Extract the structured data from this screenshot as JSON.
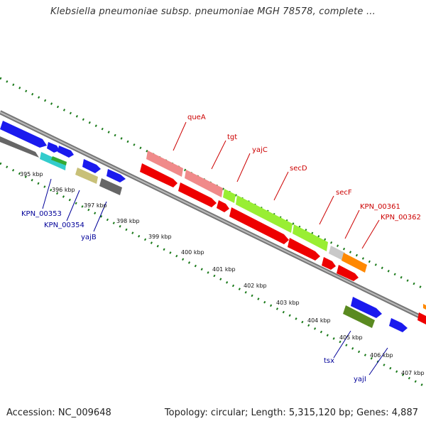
{
  "title": "Klebsiella pneumoniae subsp. pneumoniae MGH 78578, complete ...",
  "footer": {
    "accession": "Accession: NC_009648",
    "summary": "Topology: circular; Length: 5,315,120 bp; Genes: 4,887"
  },
  "kbp_labels": [
    "395 kbp",
    "396 kbp",
    "397 kbp",
    "398 kbp",
    "399 kbp",
    "400 kbp",
    "401 kbp",
    "402 kbp",
    "403 kbp",
    "404 kbp",
    "405 kbp",
    "406 kbp",
    "407 kbp"
  ],
  "genes_top": [
    "queA",
    "tgt",
    "yajC",
    "secD",
    "secF",
    "KPN_00361",
    "KPN_00362"
  ],
  "genes_bottom": [
    "KPN_00353",
    "KPN_00354",
    "yajB",
    "tsx",
    "yajI"
  ],
  "colors": {
    "backbone": "#8a8a8a",
    "tick": "#1a7a1a",
    "red": "#ee0000",
    "pink": "#f08a8a",
    "lime": "#99ee33",
    "blue": "#1a1aee",
    "gray": "#666666",
    "cyan": "#33cccc",
    "green": "#33aa33",
    "khaki": "#c8c078",
    "olive": "#5a8a20",
    "orange": "#ff8800",
    "lightgray": "#c8c8c8"
  }
}
